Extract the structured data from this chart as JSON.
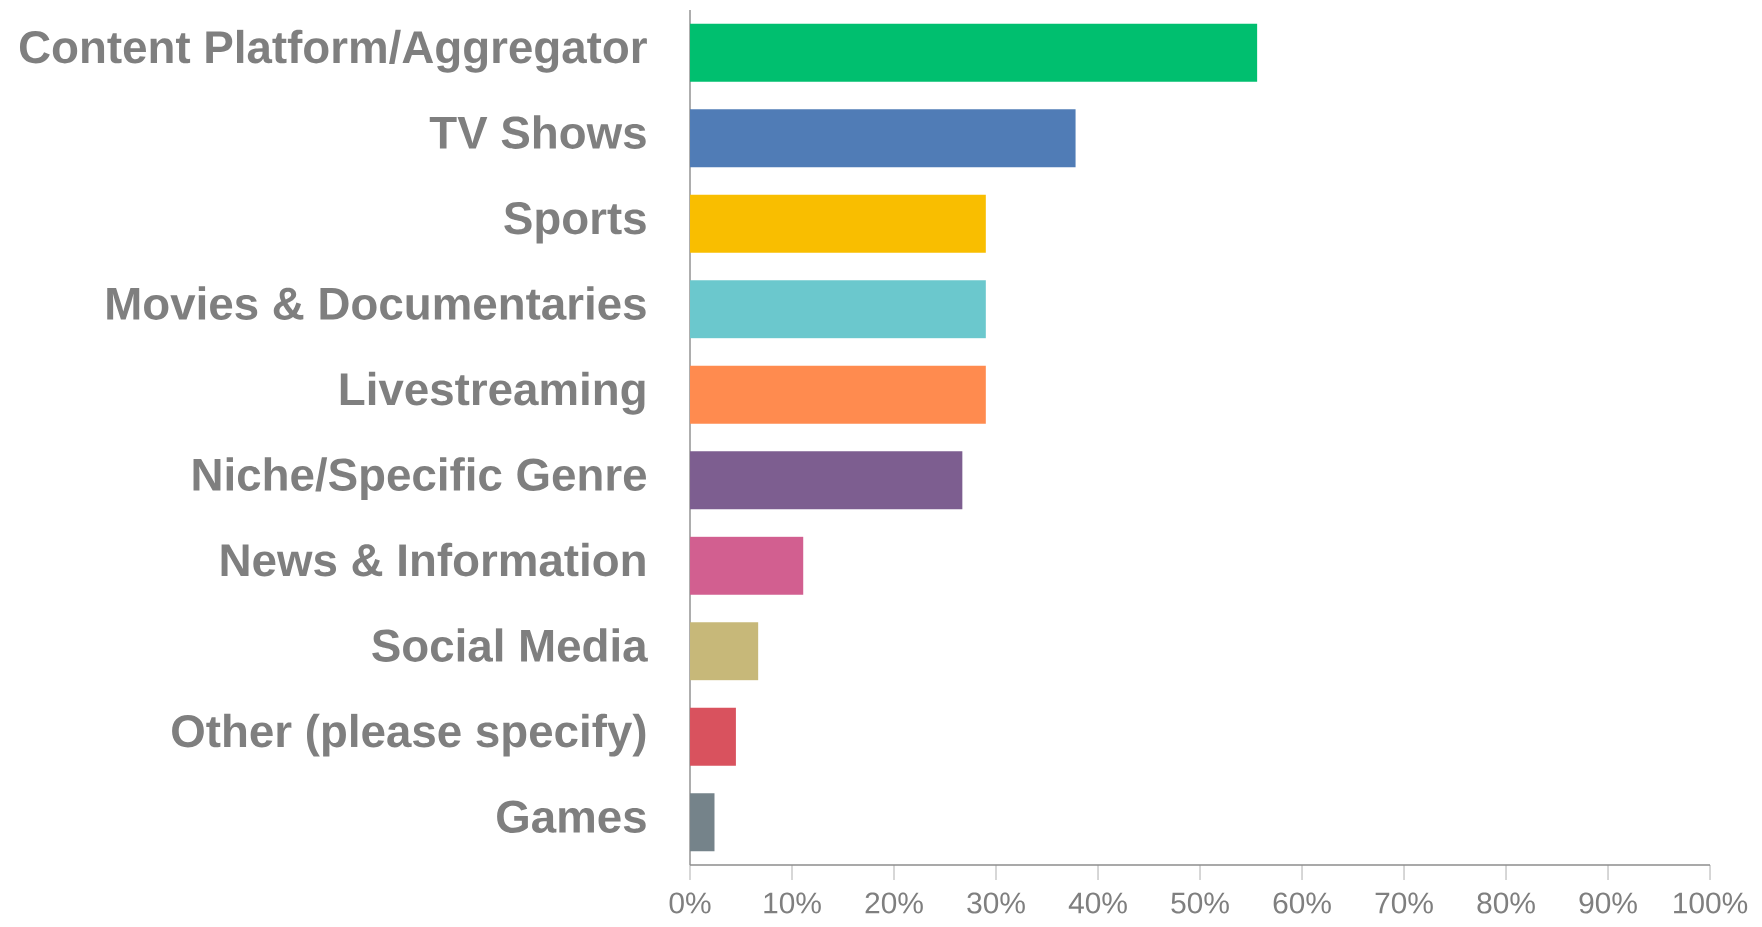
{
  "chart_data": {
    "type": "bar",
    "orientation": "horizontal",
    "categories": [
      "Content Platform/Aggregator",
      "TV Shows",
      "Sports",
      "Movies & Documentaries",
      "Livestreaming",
      "Niche/Specific Genre",
      "News & Information",
      "Social Media",
      "Other (please specify)",
      "Games"
    ],
    "values": [
      55.6,
      37.8,
      29.0,
      29.0,
      29.0,
      26.7,
      11.1,
      6.7,
      4.5,
      2.4
    ],
    "colors": [
      "#00bf6f",
      "#507cb6",
      "#f9be00",
      "#6bc8cd",
      "#ff8b4f",
      "#7d5e90",
      "#d25f90",
      "#c7b879",
      "#d9525e",
      "#75838a"
    ],
    "xlim": [
      0,
      100
    ],
    "xticks": [
      {
        "value": 0,
        "label": "0%"
      },
      {
        "value": 10,
        "label": "10%"
      },
      {
        "value": 20,
        "label": "20%"
      },
      {
        "value": 30,
        "label": "30%"
      },
      {
        "value": 40,
        "label": "40%"
      },
      {
        "value": 50,
        "label": "50%"
      },
      {
        "value": 60,
        "label": "60%"
      },
      {
        "value": 70,
        "label": "70%"
      },
      {
        "value": 80,
        "label": "80%"
      },
      {
        "value": 90,
        "label": "90%"
      },
      {
        "value": 100,
        "label": "100%"
      }
    ],
    "grid": false
  }
}
